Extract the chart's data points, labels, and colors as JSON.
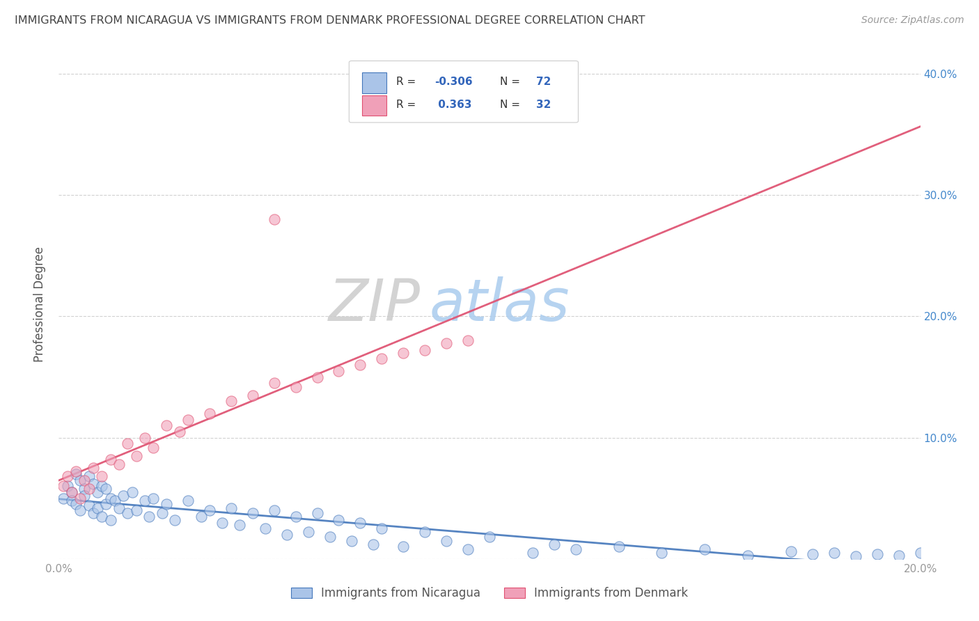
{
  "title": "IMMIGRANTS FROM NICARAGUA VS IMMIGRANTS FROM DENMARK PROFESSIONAL DEGREE CORRELATION CHART",
  "source": "Source: ZipAtlas.com",
  "ylabel": "Professional Degree",
  "xlabel": "",
  "xlim": [
    0.0,
    0.2
  ],
  "ylim": [
    0.0,
    0.42
  ],
  "xticks": [
    0.0,
    0.05,
    0.1,
    0.15,
    0.2
  ],
  "xtick_labels": [
    "0.0%",
    "",
    "",
    "",
    "20.0%"
  ],
  "yticks": [
    0.0,
    0.1,
    0.2,
    0.3,
    0.4
  ],
  "ytick_labels_left": [
    "",
    "",
    "",
    "",
    ""
  ],
  "ytick_labels_right": [
    "",
    "10.0%",
    "20.0%",
    "30.0%",
    "40.0%"
  ],
  "color_nicaragua": "#aac4e8",
  "color_denmark": "#f0a0b8",
  "color_trendline_nicaragua": "#4477bb",
  "color_trendline_denmark": "#e05070",
  "background_color": "#ffffff",
  "grid_color": "#cccccc",
  "title_color": "#444444",
  "axis_label_color": "#555555",
  "tick_color": "#999999",
  "right_tick_color": "#4488cc",
  "watermark_zip_color": "#cccccc",
  "watermark_atlas_color": "#aaccee",
  "r_value_nicaragua": -0.306,
  "n_nicaragua": 72,
  "r_value_denmark": 0.363,
  "n_denmark": 32,
  "seed": 42,
  "x_nic": [
    0.001,
    0.002,
    0.003,
    0.003,
    0.004,
    0.004,
    0.005,
    0.005,
    0.006,
    0.006,
    0.007,
    0.007,
    0.008,
    0.008,
    0.009,
    0.009,
    0.01,
    0.01,
    0.011,
    0.011,
    0.012,
    0.012,
    0.013,
    0.014,
    0.015,
    0.016,
    0.017,
    0.018,
    0.02,
    0.021,
    0.022,
    0.024,
    0.025,
    0.027,
    0.03,
    0.033,
    0.035,
    0.038,
    0.04,
    0.042,
    0.045,
    0.048,
    0.05,
    0.053,
    0.055,
    0.058,
    0.06,
    0.063,
    0.065,
    0.068,
    0.07,
    0.073,
    0.075,
    0.08,
    0.085,
    0.09,
    0.095,
    0.1,
    0.11,
    0.115,
    0.12,
    0.13,
    0.14,
    0.15,
    0.16,
    0.17,
    0.175,
    0.18,
    0.185,
    0.19,
    0.195,
    0.2
  ],
  "y_nic": [
    0.05,
    0.06,
    0.055,
    0.048,
    0.07,
    0.045,
    0.065,
    0.04,
    0.058,
    0.052,
    0.068,
    0.044,
    0.062,
    0.038,
    0.055,
    0.042,
    0.06,
    0.035,
    0.058,
    0.045,
    0.05,
    0.032,
    0.048,
    0.042,
    0.052,
    0.038,
    0.055,
    0.04,
    0.048,
    0.035,
    0.05,
    0.038,
    0.045,
    0.032,
    0.048,
    0.035,
    0.04,
    0.03,
    0.042,
    0.028,
    0.038,
    0.025,
    0.04,
    0.02,
    0.035,
    0.022,
    0.038,
    0.018,
    0.032,
    0.015,
    0.03,
    0.012,
    0.025,
    0.01,
    0.022,
    0.015,
    0.008,
    0.018,
    0.005,
    0.012,
    0.008,
    0.01,
    0.005,
    0.008,
    0.003,
    0.006,
    0.004,
    0.005,
    0.002,
    0.004,
    0.003,
    0.005
  ],
  "x_den": [
    0.001,
    0.002,
    0.003,
    0.004,
    0.005,
    0.006,
    0.007,
    0.008,
    0.01,
    0.012,
    0.014,
    0.016,
    0.018,
    0.02,
    0.022,
    0.025,
    0.028,
    0.03,
    0.035,
    0.04,
    0.045,
    0.05,
    0.055,
    0.06,
    0.065,
    0.07,
    0.075,
    0.08,
    0.085,
    0.09,
    0.05,
    0.095
  ],
  "y_den": [
    0.06,
    0.068,
    0.055,
    0.072,
    0.05,
    0.065,
    0.058,
    0.075,
    0.068,
    0.082,
    0.078,
    0.095,
    0.085,
    0.1,
    0.092,
    0.11,
    0.105,
    0.115,
    0.12,
    0.13,
    0.135,
    0.145,
    0.142,
    0.15,
    0.155,
    0.16,
    0.165,
    0.17,
    0.172,
    0.178,
    0.28,
    0.18
  ]
}
